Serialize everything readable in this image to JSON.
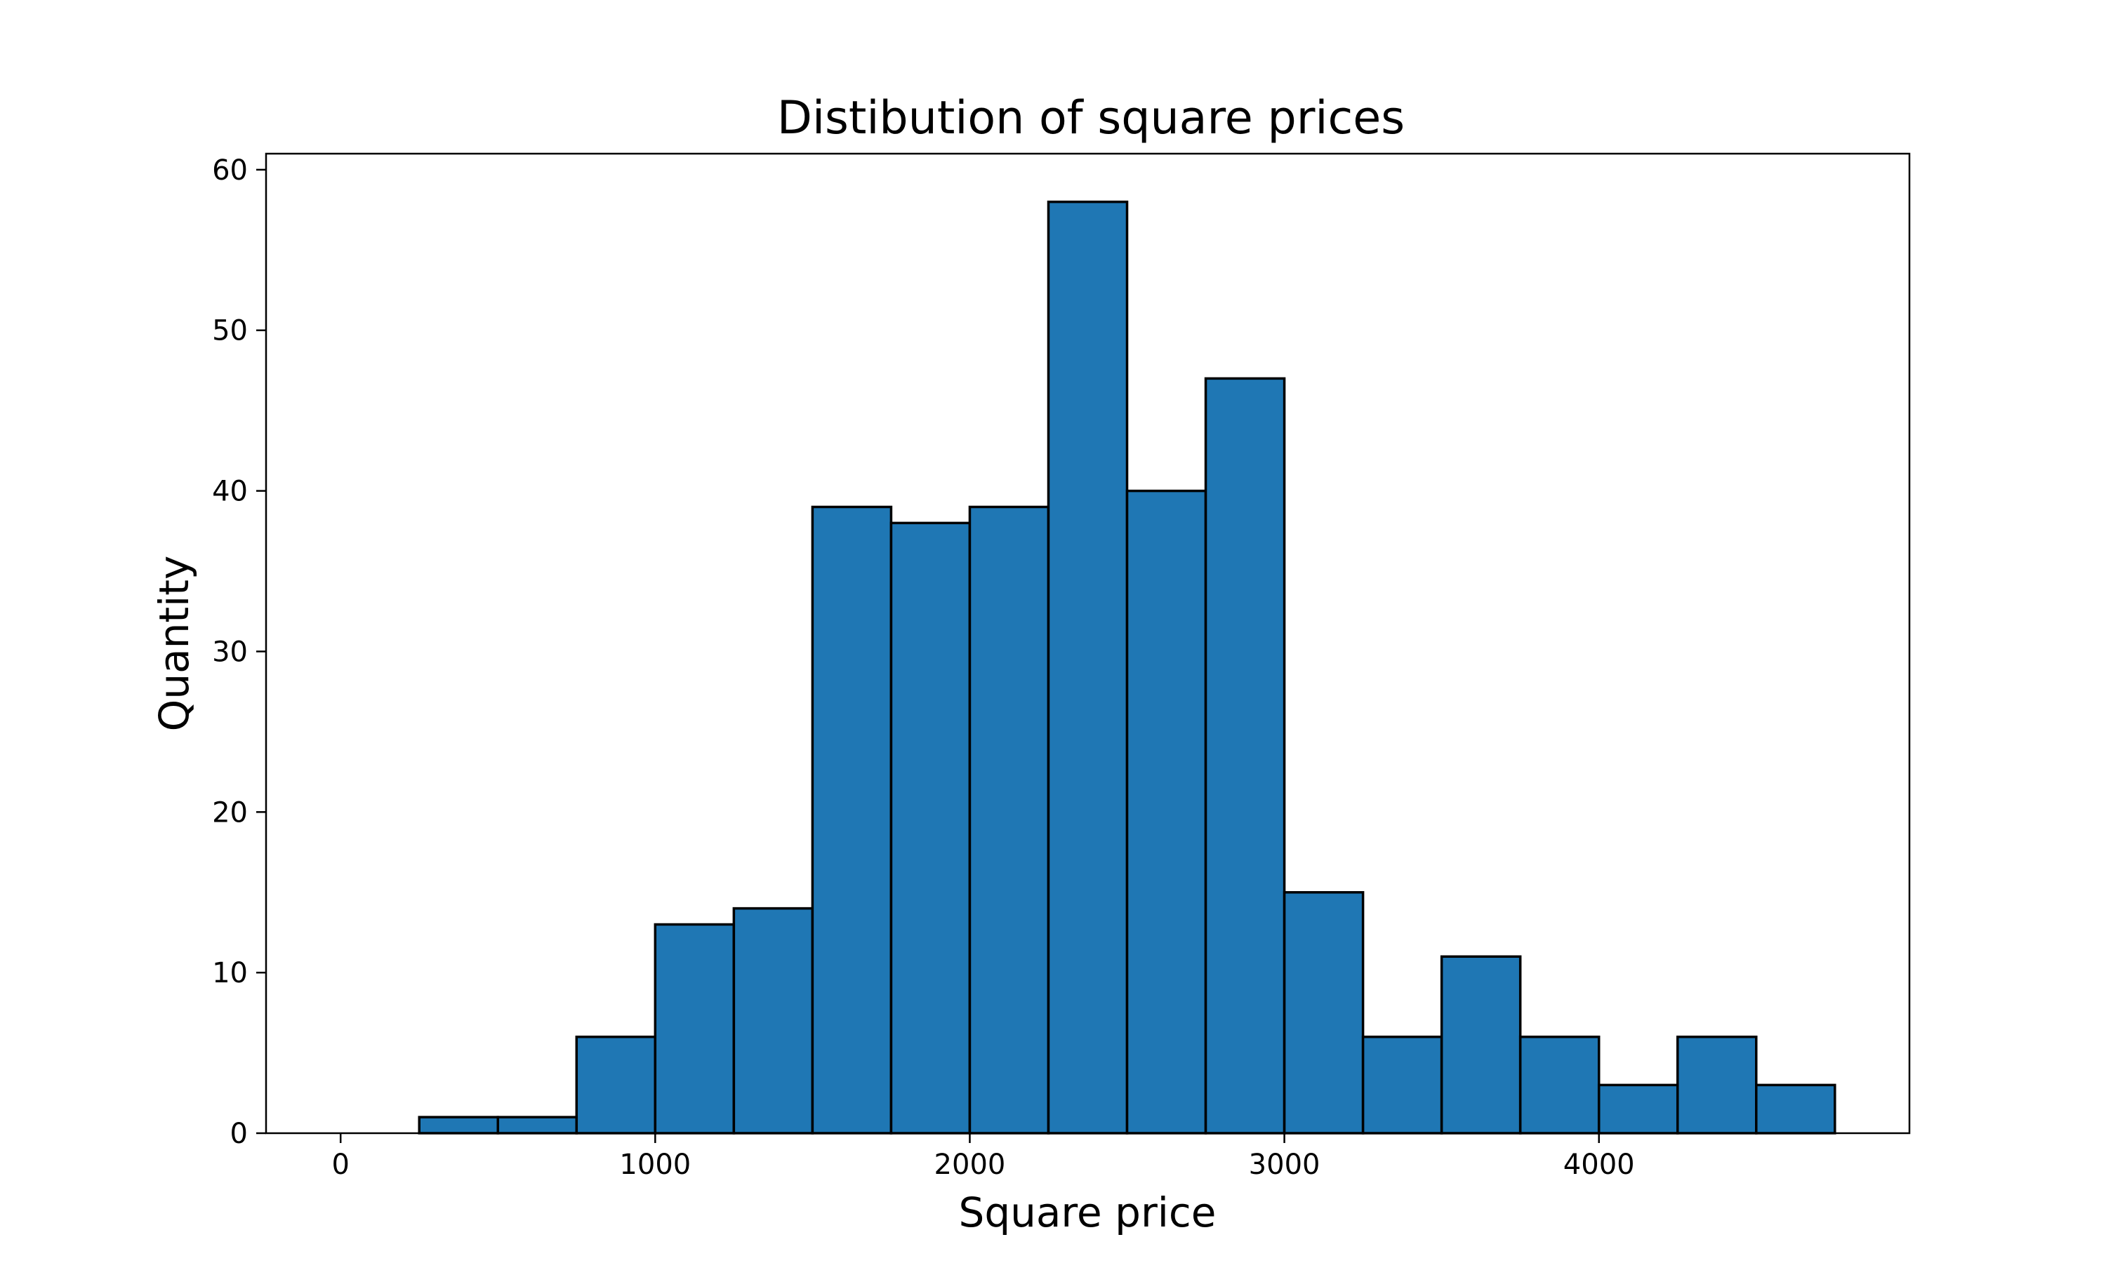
{
  "chart_data": {
    "type": "bar",
    "title": "Distibution of square prices",
    "xlabel": "Square price",
    "ylabel": "Quantity",
    "bin_width": 250,
    "bins_start": [
      0,
      250,
      500,
      750,
      1000,
      1250,
      1500,
      1750,
      2000,
      2250,
      2500,
      2750,
      3000,
      3250,
      3500,
      3750,
      4000,
      4250,
      4500
    ],
    "values": [
      0,
      1,
      1,
      6,
      13,
      14,
      39,
      38,
      39,
      58,
      40,
      47,
      15,
      6,
      11,
      6,
      3,
      6,
      3
    ],
    "xlim": [
      -237,
      4987
    ],
    "ylim": [
      0,
      61
    ],
    "xticks": [
      0,
      1000,
      2000,
      3000,
      4000
    ],
    "xtick_labels": [
      "0",
      "1000",
      "2000",
      "3000",
      "4000"
    ],
    "yticks": [
      0,
      10,
      20,
      30,
      40,
      50,
      60
    ],
    "ytick_labels": [
      "0",
      "10",
      "20",
      "30",
      "40",
      "50",
      "60"
    ],
    "grid": false,
    "legend": "none",
    "bar_color": "#1f77b4",
    "edge_color": "#000000"
  }
}
